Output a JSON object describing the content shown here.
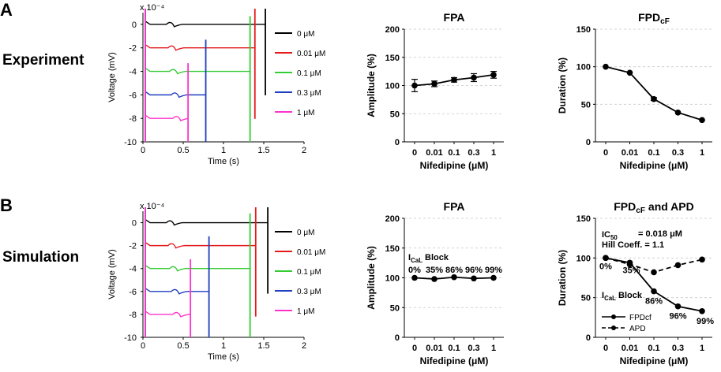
{
  "panels": {
    "a": "A",
    "b": "B"
  },
  "rows": {
    "experiment": "Experiment",
    "simulation": "Simulation"
  },
  "chart_data": [
    {
      "id": "expTraces",
      "type": "line",
      "title": "",
      "scale_label": "x 10⁻⁴",
      "xlabel": "Time (s)",
      "ylabel": "Voltage (mV)",
      "xlim": [
        0,
        2
      ],
      "ylim": [
        -10,
        1
      ],
      "xticks": [
        "0",
        "0.5",
        "1",
        "1.5",
        "2"
      ],
      "yticks": [
        "0",
        "-2",
        "-4",
        "-6",
        "-8",
        "-10"
      ],
      "legend_position": "right",
      "series": [
        {
          "name": "0 μM",
          "color": "#000000",
          "baseline": 0,
          "spike_time": 1.52
        },
        {
          "name": "0.01 μM",
          "color": "#e41a1c",
          "baseline": -2,
          "spike_time": 1.39
        },
        {
          "name": "0.1 μM",
          "color": "#33cc33",
          "baseline": -4,
          "spike_time": 1.33
        },
        {
          "name": "0.3 μM",
          "color": "#1f3fbf",
          "baseline": -6,
          "spike_time": 0.78
        },
        {
          "name": "1 μM",
          "color": "#ff33cc",
          "baseline": -8,
          "spike_time": 0.56
        }
      ]
    },
    {
      "id": "expFPA",
      "type": "line",
      "title": "FPA",
      "xlabel": "Nifedipine (μM)",
      "ylabel": "Amplitude (%)",
      "categories": [
        "0",
        "0.01",
        "0.1",
        "0.3",
        "1"
      ],
      "ylim": [
        0,
        200
      ],
      "yticks": [
        "0",
        "50",
        "100",
        "150",
        "200"
      ],
      "series": [
        {
          "name": "FPA",
          "values": [
            100,
            103,
            110,
            114,
            119
          ],
          "errors": [
            11,
            5,
            4,
            7,
            6
          ]
        }
      ]
    },
    {
      "id": "expFPD",
      "type": "line",
      "title": "FPD",
      "title_sub": "cF",
      "xlabel": "Nifedipine (μM)",
      "ylabel": "Duration (%)",
      "categories": [
        "0",
        "0.01",
        "0.1",
        "0.3",
        "1"
      ],
      "ylim": [
        0,
        150
      ],
      "yticks": [
        "0",
        "50",
        "100",
        "150"
      ],
      "series": [
        {
          "name": "FPDcF",
          "values": [
            100,
            92,
            57,
            39,
            29
          ],
          "errors": [
            0,
            0,
            2,
            0,
            0
          ]
        }
      ]
    },
    {
      "id": "simTraces",
      "type": "line",
      "title": "",
      "scale_label": "x 10⁻⁴",
      "xlabel": "Time (s)",
      "ylabel": "Voltage (mV)",
      "xlim": [
        0,
        2
      ],
      "ylim": [
        -10,
        1
      ],
      "xticks": [
        "0",
        "0.5",
        "1",
        "1.5",
        "2"
      ],
      "yticks": [
        "0",
        "-2",
        "-4",
        "-6",
        "-8",
        "-10"
      ],
      "legend_position": "right",
      "series": [
        {
          "name": "0 μM",
          "color": "#000000",
          "baseline": 0,
          "spike_time": 1.55
        },
        {
          "name": "0.01 μM",
          "color": "#e41a1c",
          "baseline": -2,
          "spike_time": 1.4
        },
        {
          "name": "0.1 μM",
          "color": "#33cc33",
          "baseline": -4,
          "spike_time": 1.33
        },
        {
          "name": "0.3 μM",
          "color": "#1f3fbf",
          "baseline": -6,
          "spike_time": 0.82
        },
        {
          "name": "1 μM",
          "color": "#ff33cc",
          "baseline": -8,
          "spike_time": 0.59
        }
      ]
    },
    {
      "id": "simFPA",
      "type": "line",
      "title": "FPA",
      "xlabel": "Nifedipine (μM)",
      "ylabel": "Amplitude (%)",
      "categories": [
        "0",
        "0.01",
        "0.1",
        "0.3",
        "1"
      ],
      "ylim": [
        0,
        200
      ],
      "yticks": [
        "0",
        "50",
        "100",
        "150",
        "200"
      ],
      "block_label": "I",
      "block_label_sub": "CaL",
      "block_label_rest": " Block",
      "block_values": [
        "0%",
        "35%",
        "86%",
        "96%",
        "99%"
      ],
      "series": [
        {
          "name": "FPA",
          "values": [
            100,
            98,
            101,
            99,
            100
          ]
        }
      ]
    },
    {
      "id": "simFPD",
      "type": "line",
      "title": "FPD",
      "title_sub": "cF",
      "title_rest": " and APD",
      "xlabel": "Nifedipine (μM)",
      "ylabel": "Duration (%)",
      "categories": [
        "0",
        "0.01",
        "0.1",
        "0.3",
        "1"
      ],
      "ylim": [
        0,
        150
      ],
      "yticks": [
        "0",
        "50",
        "100",
        "150"
      ],
      "ic50_label": "IC",
      "ic50_sub": "50",
      "ic50_value": "= 0.018 μM",
      "hill_label": "Hill Coeff. = 1.1",
      "block_label": "I",
      "block_label_sub": "CaL",
      "block_label_rest": " Block",
      "block_values": [
        "0%",
        "35%",
        "86%",
        "96%",
        "99%"
      ],
      "legend_position": "bottom-left",
      "series": [
        {
          "name": "FPDcf",
          "values": [
            100,
            94,
            58,
            39,
            33
          ],
          "dash": false
        },
        {
          "name": "APD",
          "values": [
            100,
            92,
            82,
            91,
            98
          ],
          "dash": true
        }
      ]
    }
  ]
}
